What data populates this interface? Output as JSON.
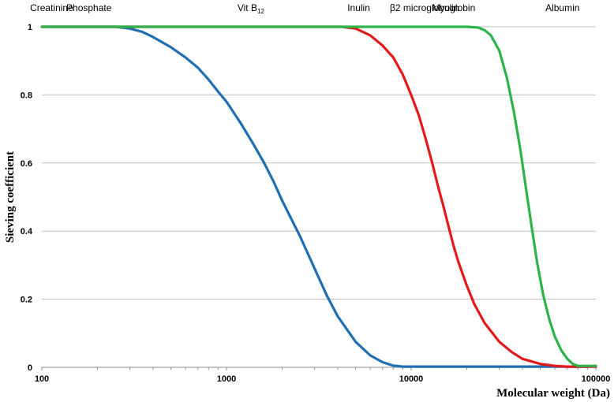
{
  "chart_data": {
    "type": "line",
    "title": "",
    "xlabel": "Molecular weight (Da)",
    "ylabel": "Sieving coefficient",
    "x_scale": "log",
    "xlim": [
      100,
      100000
    ],
    "ylim": [
      0,
      1
    ],
    "grid": "horizontal",
    "legend": "none",
    "x_ticks": [
      {
        "value": 100,
        "label": "100"
      },
      {
        "value": 1000,
        "label": "1000"
      },
      {
        "value": 10000,
        "label": "10000"
      },
      {
        "value": 100000,
        "label": "100000"
      }
    ],
    "y_ticks": [
      {
        "value": 0,
        "label": "0"
      },
      {
        "value": 0.2,
        "label": "0.2"
      },
      {
        "value": 0.4,
        "label": "0.4"
      },
      {
        "value": 0.6,
        "label": "0.6"
      },
      {
        "value": 0.8,
        "label": "0.8"
      },
      {
        "value": 1,
        "label": "1"
      }
    ],
    "markers": [
      {
        "x": 113,
        "main": "Creatinine",
        "sub": ""
      },
      {
        "x": 180,
        "main": "Phosphate",
        "sub": ""
      },
      {
        "x": 1355,
        "main": "Vit B",
        "sub": "12"
      },
      {
        "x": 5200,
        "main": "Inulin",
        "sub": ""
      },
      {
        "x": 11800,
        "main": "β2 microglobulin",
        "sub": ""
      },
      {
        "x": 17000,
        "main": "Myoglobin",
        "sub": ""
      },
      {
        "x": 66000,
        "main": "Albumin",
        "sub": ""
      }
    ],
    "series": [
      {
        "color": "#1f6fb2",
        "points": [
          [
            100,
            1
          ],
          [
            250,
            1
          ],
          [
            300,
            0.995
          ],
          [
            350,
            0.985
          ],
          [
            400,
            0.97
          ],
          [
            500,
            0.94
          ],
          [
            600,
            0.91
          ],
          [
            700,
            0.88
          ],
          [
            800,
            0.845
          ],
          [
            900,
            0.81
          ],
          [
            1000,
            0.78
          ],
          [
            1200,
            0.715
          ],
          [
            1400,
            0.655
          ],
          [
            1600,
            0.6
          ],
          [
            1800,
            0.545
          ],
          [
            2000,
            0.49
          ],
          [
            2200,
            0.445
          ],
          [
            2500,
            0.385
          ],
          [
            3000,
            0.29
          ],
          [
            3500,
            0.21
          ],
          [
            4000,
            0.15
          ],
          [
            5000,
            0.075
          ],
          [
            6000,
            0.035
          ],
          [
            7000,
            0.015
          ],
          [
            8000,
            0.005
          ],
          [
            9000,
            0.002
          ],
          [
            10000,
            0.002
          ],
          [
            30000,
            0.002
          ],
          [
            100000,
            0.002
          ]
        ]
      },
      {
        "color": "#e31a1c",
        "points": [
          [
            100,
            1
          ],
          [
            4200,
            1
          ],
          [
            5000,
            0.995
          ],
          [
            6000,
            0.975
          ],
          [
            7000,
            0.945
          ],
          [
            8000,
            0.91
          ],
          [
            9000,
            0.86
          ],
          [
            10000,
            0.8
          ],
          [
            11000,
            0.74
          ],
          [
            12000,
            0.67
          ],
          [
            13000,
            0.6
          ],
          [
            14000,
            0.53
          ],
          [
            15000,
            0.47
          ],
          [
            16000,
            0.41
          ],
          [
            17000,
            0.355
          ],
          [
            18000,
            0.31
          ],
          [
            20000,
            0.24
          ],
          [
            22000,
            0.185
          ],
          [
            25000,
            0.13
          ],
          [
            30000,
            0.075
          ],
          [
            35000,
            0.045
          ],
          [
            40000,
            0.025
          ],
          [
            50000,
            0.01
          ],
          [
            60000,
            0.004
          ],
          [
            70000,
            0.002
          ],
          [
            100000,
            0.002
          ]
        ]
      },
      {
        "color": "#2db34a",
        "points": [
          [
            100,
            1
          ],
          [
            20000,
            1
          ],
          [
            23000,
            0.998
          ],
          [
            25000,
            0.99
          ],
          [
            27000,
            0.975
          ],
          [
            30000,
            0.93
          ],
          [
            33000,
            0.85
          ],
          [
            36000,
            0.75
          ],
          [
            39000,
            0.64
          ],
          [
            42000,
            0.52
          ],
          [
            45000,
            0.41
          ],
          [
            48000,
            0.31
          ],
          [
            52000,
            0.21
          ],
          [
            56000,
            0.14
          ],
          [
            60000,
            0.09
          ],
          [
            65000,
            0.05
          ],
          [
            70000,
            0.025
          ],
          [
            75000,
            0.01
          ],
          [
            80000,
            0.004
          ],
          [
            100000,
            0.004
          ]
        ]
      }
    ]
  }
}
